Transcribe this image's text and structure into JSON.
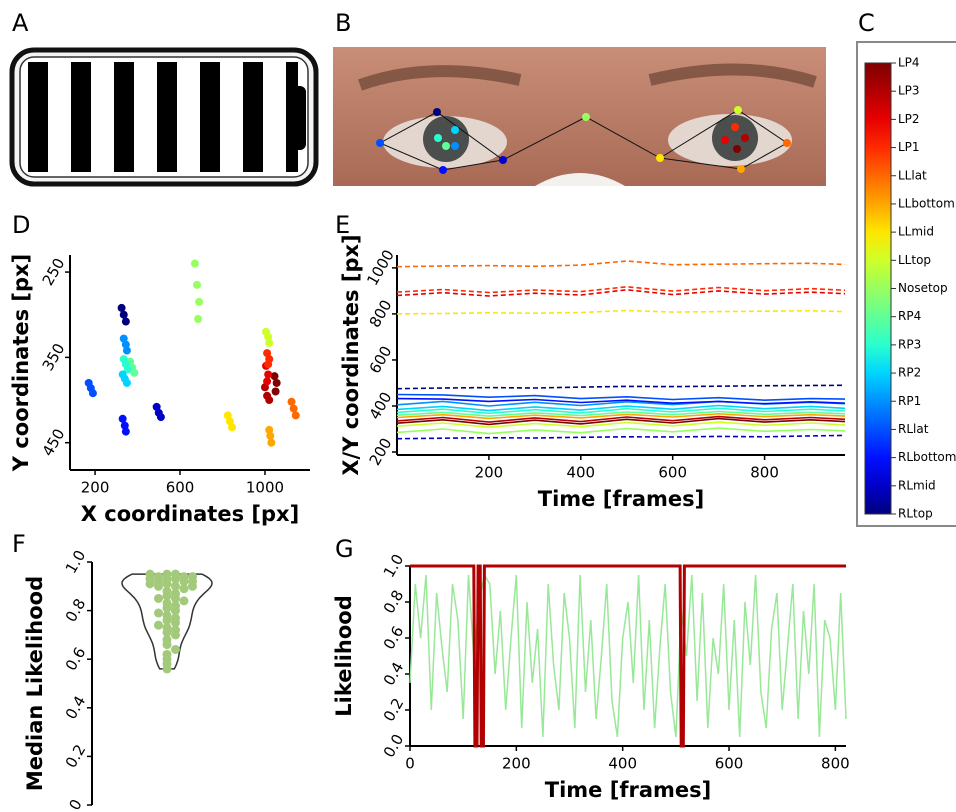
{
  "panel_labels": [
    "A",
    "B",
    "C",
    "D",
    "E",
    "F",
    "G"
  ],
  "chart_data": [
    {
      "type": "scatter",
      "xlabel": "X coordinates [px]",
      "ylabel": "Y coordinates [px]",
      "xlim": [
        82,
        1212
      ],
      "ylim": [
        230,
        482
      ],
      "y_inverted": true,
      "xticks": [
        200,
        600,
        1000
      ],
      "yticks": [
        250,
        350,
        450
      ],
      "series": [
        {
          "color": "#7f0000",
          "x": [
            1045,
            1055,
            1050
          ],
          "values": [
            372,
            380,
            390
          ]
        },
        {
          "color": "#b20000",
          "x": [
            1000,
            1010,
            1020
          ],
          "values": [
            385,
            395,
            400
          ]
        },
        {
          "color": "#e80000",
          "x": [
            1005,
            1015,
            1010
          ],
          "values": [
            360,
            370,
            378
          ]
        },
        {
          "color": "#ff2a00",
          "x": [
            1010,
            1020,
            1015
          ],
          "values": [
            345,
            352,
            358
          ]
        },
        {
          "color": "#ff6800",
          "x": [
            1125,
            1135,
            1145
          ],
          "values": [
            402,
            410,
            418
          ]
        },
        {
          "color": "#ffa600",
          "x": [
            1020,
            1025,
            1030
          ],
          "values": [
            435,
            442,
            450
          ]
        },
        {
          "color": "#ffe600",
          "x": [
            825,
            835,
            845
          ],
          "values": [
            418,
            425,
            432
          ]
        },
        {
          "color": "#ceff29",
          "x": [
            1005,
            1015,
            1020
          ],
          "values": [
            320,
            326,
            333
          ]
        },
        {
          "color": "#97ff60",
          "x": [
            670,
            680,
            690,
            685
          ],
          "values": [
            240,
            265,
            285,
            305
          ]
        },
        {
          "color": "#60ff97",
          "x": [
            365,
            375,
            385
          ],
          "values": [
            355,
            362,
            368
          ]
        },
        {
          "color": "#29ffce",
          "x": [
            335,
            345,
            355
          ],
          "values": [
            352,
            358,
            364
          ]
        },
        {
          "color": "#00d4ff",
          "x": [
            330,
            340,
            350
          ],
          "values": [
            370,
            375,
            380
          ]
        },
        {
          "color": "#0090ff",
          "x": [
            335,
            345,
            350
          ],
          "values": [
            328,
            335,
            342
          ]
        },
        {
          "color": "#0050ff",
          "x": [
            170,
            180,
            190
          ],
          "values": [
            380,
            386,
            392
          ]
        },
        {
          "color": "#0010ff",
          "x": [
            330,
            340,
            345
          ],
          "values": [
            422,
            430,
            437
          ]
        },
        {
          "color": "#0000c8",
          "x": [
            490,
            500,
            510
          ],
          "values": [
            408,
            415,
            420
          ]
        },
        {
          "color": "#00007f",
          "x": [
            325,
            335,
            345
          ],
          "values": [
            292,
            300,
            308
          ]
        }
      ]
    },
    {
      "type": "line",
      "xlabel": "Time [frames]",
      "ylabel": "X/Y coordinates [px]",
      "xlim": [
        0,
        975
      ],
      "ylim": [
        187,
        1056
      ],
      "xticks": [
        200,
        400,
        600,
        800
      ],
      "yticks": [
        200,
        400,
        600,
        800,
        1000
      ],
      "x": [
        0,
        100,
        200,
        300,
        400,
        500,
        600,
        700,
        800,
        900,
        975
      ],
      "series": [
        {
          "color": "#7f0000",
          "dashed": false,
          "values": [
            325,
            340,
            320,
            338,
            322,
            342,
            326,
            345,
            330,
            340,
            332
          ]
        },
        {
          "color": "#b20000",
          "dashed": false,
          "values": [
            335,
            350,
            330,
            348,
            332,
            352,
            336,
            354,
            340,
            350,
            342
          ]
        },
        {
          "color": "#e80000",
          "dashed": true,
          "values": [
            880,
            892,
            878,
            890,
            882,
            905,
            884,
            900,
            886,
            895,
            888
          ]
        },
        {
          "color": "#ff2a00",
          "dashed": true,
          "values": [
            895,
            906,
            893,
            904,
            897,
            918,
            899,
            915,
            901,
            910,
            903
          ]
        },
        {
          "color": "#ff6800",
          "dashed": true,
          "values": [
            1005,
            1008,
            1010,
            1007,
            1012,
            1030,
            1014,
            1016,
            1018,
            1020,
            1015
          ]
        },
        {
          "color": "#ffa600",
          "dashed": false,
          "values": [
            350,
            362,
            346,
            360,
            348,
            364,
            352,
            366,
            354,
            362,
            356
          ]
        },
        {
          "color": "#ffe600",
          "dashed": true,
          "values": [
            800,
            802,
            805,
            803,
            806,
            815,
            808,
            810,
            812,
            814,
            810
          ]
        },
        {
          "color": "#ceff29",
          "dashed": false,
          "values": [
            312,
            326,
            308,
            324,
            310,
            328,
            314,
            330,
            316,
            326,
            318
          ]
        },
        {
          "color": "#97ff60",
          "dashed": false,
          "values": [
            285,
            300,
            280,
            296,
            284,
            302,
            288,
            304,
            290,
            298,
            292
          ]
        },
        {
          "color": "#60ff97",
          "dashed": false,
          "values": [
            360,
            372,
            356,
            370,
            358,
            374,
            362,
            376,
            364,
            372,
            366
          ]
        },
        {
          "color": "#29ffce",
          "dashed": false,
          "values": [
            372,
            386,
            368,
            384,
            370,
            388,
            374,
            390,
            376,
            386,
            378
          ]
        },
        {
          "color": "#00d4ff",
          "dashed": false,
          "values": [
            385,
            398,
            380,
            396,
            382,
            400,
            386,
            402,
            388,
            398,
            390
          ]
        },
        {
          "color": "#0090ff",
          "dashed": false,
          "values": [
            405,
            420,
            400,
            416,
            402,
            418,
            406,
            420,
            408,
            416,
            410
          ]
        },
        {
          "color": "#0050ff",
          "dashed": false,
          "values": [
            450,
            448,
            438,
            445,
            432,
            440,
            428,
            436,
            425,
            432,
            430
          ]
        },
        {
          "color": "#0010ff",
          "dashed": false,
          "values": [
            432,
            430,
            420,
            428,
            415,
            425,
            412,
            420,
            410,
            418,
            412
          ]
        },
        {
          "color": "#0000c8",
          "dashed": true,
          "values": [
            258,
            260,
            262,
            261,
            264,
            266,
            265,
            268,
            266,
            270,
            272
          ]
        },
        {
          "color": "#00007f",
          "dashed": true,
          "values": [
            475,
            478,
            480,
            478,
            482,
            485,
            484,
            486,
            488,
            489,
            490
          ]
        }
      ]
    },
    {
      "type": "swarm",
      "ylabel": "Median Likelihood",
      "ylim": [
        0,
        1
      ],
      "yticks": [
        0,
        0.2,
        0.4,
        0.6,
        0.8,
        {
          "value": 1,
          "label": "1.0"
        }
      ],
      "color": "#a3c97a",
      "values": [
        0.95,
        0.95,
        0.94,
        0.94,
        0.93,
        0.93,
        0.92,
        0.92,
        0.91,
        0.9,
        0.9,
        0.89,
        0.88,
        0.87,
        0.86,
        0.85,
        0.85,
        0.84,
        0.83,
        0.82,
        0.81,
        0.8,
        0.79,
        0.78,
        0.77,
        0.76,
        0.75,
        0.74,
        0.73,
        0.72,
        0.71,
        0.7,
        0.68,
        0.66,
        0.64,
        0.62,
        0.6,
        0.58,
        0.56,
        0.95,
        0.94,
        0.93,
        0.92,
        0.91,
        0.9
      ]
    },
    {
      "type": "line",
      "xlabel": "Time [frames]",
      "ylabel": "Likelihood",
      "xlim": [
        0,
        820
      ],
      "ylim": [
        0,
        1
      ],
      "xticks": [
        0,
        200,
        400,
        600,
        800
      ],
      "yticks": [
        {
          "value": 0,
          "label": "0.0"
        },
        0.2,
        0.4,
        0.6,
        0.8,
        {
          "value": 1,
          "label": "1.0"
        }
      ],
      "series": [
        {
          "color": "#98e898",
          "width": 1.5,
          "x": [
            0,
            10,
            20,
            30,
            40,
            50,
            60,
            70,
            80,
            90,
            100,
            110,
            120,
            130,
            140,
            150,
            160,
            170,
            180,
            190,
            200,
            210,
            220,
            230,
            240,
            250,
            260,
            270,
            280,
            290,
            300,
            310,
            320,
            330,
            340,
            350,
            360,
            370,
            380,
            390,
            400,
            410,
            420,
            430,
            440,
            450,
            460,
            470,
            480,
            490,
            500,
            510,
            520,
            530,
            540,
            550,
            560,
            570,
            580,
            590,
            600,
            610,
            620,
            630,
            640,
            650,
            660,
            670,
            680,
            690,
            700,
            710,
            720,
            730,
            740,
            750,
            760,
            770,
            780,
            790,
            800,
            810,
            820
          ],
          "values": [
            0.35,
            0.9,
            0.6,
            0.95,
            0.2,
            0.85,
            0.55,
            0.3,
            0.9,
            0.7,
            0.15,
            0.95,
            0.5,
            0.8,
            0.95,
            0.9,
            0.4,
            0.75,
            0.2,
            0.6,
            0.95,
            0.1,
            0.8,
            0.35,
            0.65,
            0.05,
            0.9,
            0.45,
            0.2,
            0.85,
            0.6,
            0.1,
            0.95,
            0.3,
            0.7,
            0.15,
            0.5,
            0.9,
            0.25,
            0.05,
            0.6,
            0.8,
            0.35,
            0.95,
            0.2,
            0.7,
            0.1,
            0.55,
            0.9,
            0.3,
            0.05,
            0.75,
            0.5,
            0.95,
            0.25,
            0.85,
            0.1,
            0.6,
            0.4,
            0.9,
            0.2,
            0.7,
            0.05,
            0.8,
            0.45,
            0.95,
            0.3,
            0.1,
            0.65,
            0.85,
            0.2,
            0.55,
            0.9,
            0.15,
            0.75,
            0.4,
            0.9,
            0.05,
            0.7,
            0.6,
            0.2,
            0.85,
            0.15
          ]
        },
        {
          "color": "#b00000",
          "width": 3,
          "x": [
            0,
            120,
            122,
            126,
            128,
            132,
            134,
            138,
            140,
            508,
            510,
            514,
            516,
            820
          ],
          "values": [
            1,
            1,
            0,
            0,
            1,
            1,
            0,
            0,
            1,
            1,
            0,
            0,
            1,
            1
          ]
        }
      ]
    },
    {
      "type": "colorbar",
      "labels": [
        "LP4",
        "LP3",
        "LP2",
        "LP1",
        "LLlat",
        "LLbottom",
        "LLmid",
        "LLtop",
        "Nosetop",
        "RP4",
        "RP3",
        "RP2",
        "RP1",
        "RLlat",
        "RLbottom",
        "RLmid",
        "RLtop"
      ],
      "colors": [
        "#7f0000",
        "#b20000",
        "#e80000",
        "#ff2a00",
        "#ff6800",
        "#ffa600",
        "#ffe600",
        "#ceff29",
        "#97ff60",
        "#60ff97",
        "#29ffce",
        "#00d4ff",
        "#0090ff",
        "#0050ff",
        "#0010ff",
        "#0000c8",
        "#00007f"
      ]
    }
  ]
}
